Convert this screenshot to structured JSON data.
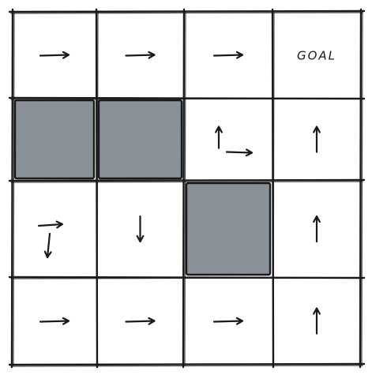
{
  "grid": {
    "rows": 4,
    "cols": 4,
    "goal_label": "GOAL",
    "blocked_fill": "#8a9098",
    "ink": "#1a1a1a",
    "cells": [
      [
        {
          "arrows": [
            "right"
          ]
        },
        {
          "arrows": [
            "right"
          ]
        },
        {
          "arrows": [
            "right"
          ]
        },
        {
          "goal": true
        }
      ],
      [
        {
          "blocked": true
        },
        {
          "blocked": true
        },
        {
          "arrows": [
            "up",
            "right"
          ]
        },
        {
          "arrows": [
            "up"
          ]
        }
      ],
      [
        {
          "arrows": [
            "right",
            "down"
          ]
        },
        {
          "arrows": [
            "down"
          ]
        },
        {
          "blocked": true
        },
        {
          "arrows": [
            "up"
          ]
        }
      ],
      [
        {
          "arrows": [
            "right"
          ]
        },
        {
          "arrows": [
            "right"
          ]
        },
        {
          "arrows": [
            "right"
          ]
        },
        {
          "arrows": [
            "up"
          ]
        }
      ]
    ]
  }
}
